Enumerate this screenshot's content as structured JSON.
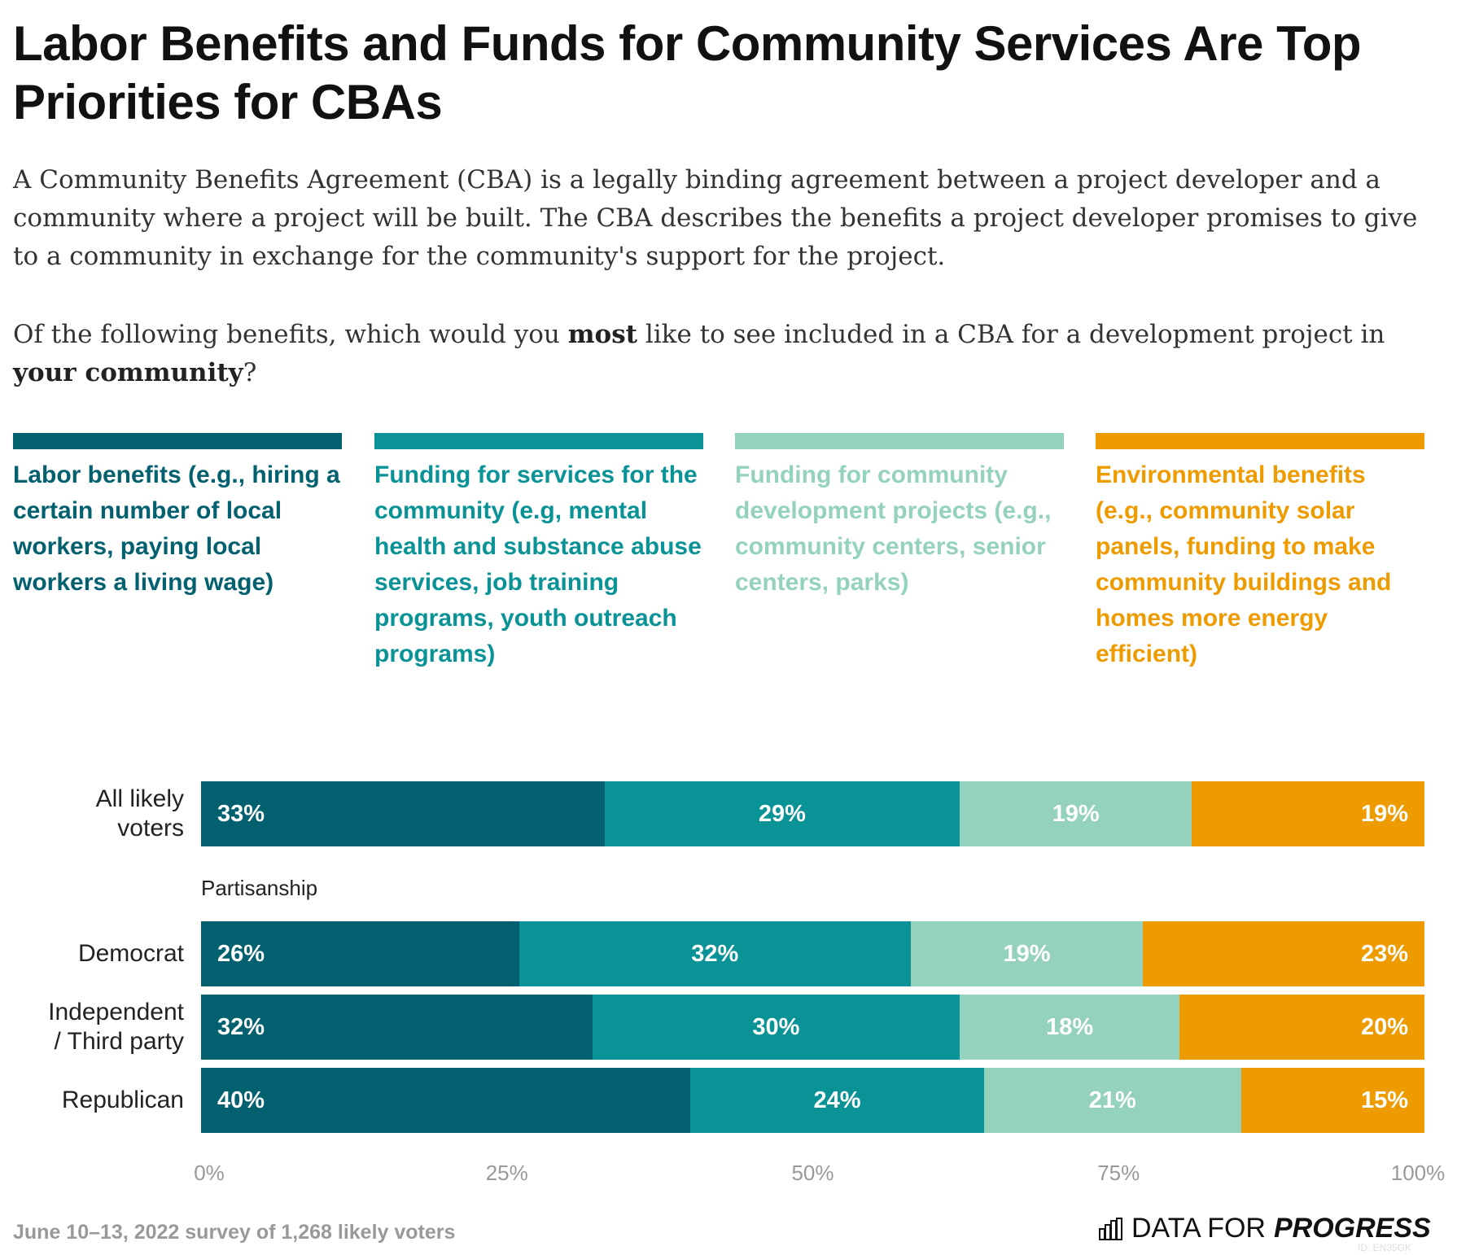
{
  "title": "Labor Benefits and Funds for Community Services Are Top Priorities for CBAs",
  "subtitle": "A Community Benefits Agreement (CBA) is a legally binding agreement between a project developer and a community where a project will be built. The CBA describes the benefits a project developer promises to give to a community in exchange for the community's support for the project.",
  "question": {
    "p1": "Of the following benefits, which would you ",
    "b1": "most",
    "p2": " like to see included in a CBA for a development project in ",
    "b2": "your community",
    "p3": "?"
  },
  "footer": {
    "source": "June 10–13, 2022 survey of 1,268 likely voters",
    "logo_light": "DATA FOR",
    "logo_bold": "PROGRESS",
    "id": "ID: EN35GK"
  },
  "chart_data": {
    "type": "bar",
    "orientation": "horizontal-stacked",
    "legend_placement": "top",
    "series": [
      {
        "name": "Labor benefits (e.g., hiring a certain number of local workers, paying local workers a living wage)",
        "color": "#02606F",
        "values": [
          33,
          26,
          32,
          40
        ]
      },
      {
        "name": "Funding for services for the community (e.g, mental health and substance abuse services, job training programs, youth outreach programs)",
        "color": "#0A9396",
        "values": [
          29,
          32,
          30,
          24
        ]
      },
      {
        "name": "Funding for community development projects (e.g., community centers, senior centers, parks)",
        "color": "#94D2BD",
        "values": [
          19,
          19,
          18,
          21
        ]
      },
      {
        "name": "Environmental benefits (e.g., community solar panels, funding to make community buildings and homes more energy efficient)",
        "color": "#EE9B00",
        "values": [
          19,
          23,
          20,
          15
        ]
      }
    ],
    "categories": [
      "All likely voters",
      "Democrat",
      "Independent / Third party",
      "Republican"
    ],
    "group_label": "Partisanship",
    "xlim": [
      0,
      100
    ],
    "x_ticks": [
      "0%",
      "25%",
      "50%",
      "75%",
      "100%"
    ],
    "grid": false
  }
}
